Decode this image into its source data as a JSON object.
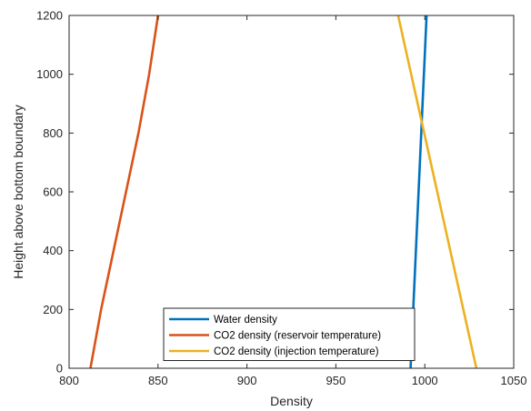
{
  "chart_data": {
    "type": "line",
    "title": "",
    "xlabel": "Density",
    "ylabel": "Height above bottom boundary",
    "xlim": [
      800,
      1050
    ],
    "ylim": [
      0,
      1200
    ],
    "xticks": [
      800,
      850,
      900,
      950,
      1000,
      1050
    ],
    "yticks": [
      0,
      200,
      400,
      600,
      800,
      1000,
      1200
    ],
    "grid": false,
    "legend_position": "bottom-center",
    "series": [
      {
        "name": "Water density",
        "color": "#0072BD",
        "x": [
          992,
          1001
        ],
        "y": [
          0,
          1200
        ]
      },
      {
        "name": "CO2 density (reservoir temperature)",
        "color": "#D95319",
        "x": [
          812,
          818,
          825,
          832,
          839,
          845,
          850
        ],
        "y": [
          0,
          200,
          400,
          600,
          800,
          1000,
          1200
        ]
      },
      {
        "name": "CO2 density (injection temperature)",
        "color": "#EDB120",
        "x": [
          1029,
          985
        ],
        "y": [
          0,
          1200
        ]
      }
    ]
  }
}
